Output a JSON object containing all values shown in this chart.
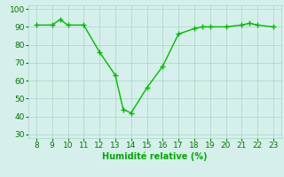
{
  "x": [
    8,
    9,
    9.5,
    10,
    11,
    12,
    13,
    13.5,
    14,
    15,
    16,
    17,
    18,
    18.5,
    19,
    20,
    21,
    21.5,
    22,
    23
  ],
  "y": [
    91,
    91,
    94,
    91,
    91,
    76,
    63,
    44,
    42,
    56,
    68,
    86,
    89,
    90,
    90,
    90,
    91,
    92,
    91,
    90
  ],
  "line_color": "#00bb00",
  "marker_color": "#00bb00",
  "bg_color": "#d5f0eb",
  "grid_color": "#b0d8cc",
  "xlabel": "Humidité relative (%)",
  "xlabel_color": "#00aa00",
  "tick_color": "#007700",
  "xlim": [
    7.5,
    23.5
  ],
  "ylim": [
    28,
    102
  ],
  "xticks": [
    8,
    9,
    10,
    11,
    12,
    13,
    14,
    15,
    16,
    17,
    18,
    19,
    20,
    21,
    22,
    23
  ],
  "yticks": [
    30,
    40,
    50,
    60,
    70,
    80,
    90,
    100
  ],
  "fontsize_label": 7,
  "fontsize_tick": 6.5
}
